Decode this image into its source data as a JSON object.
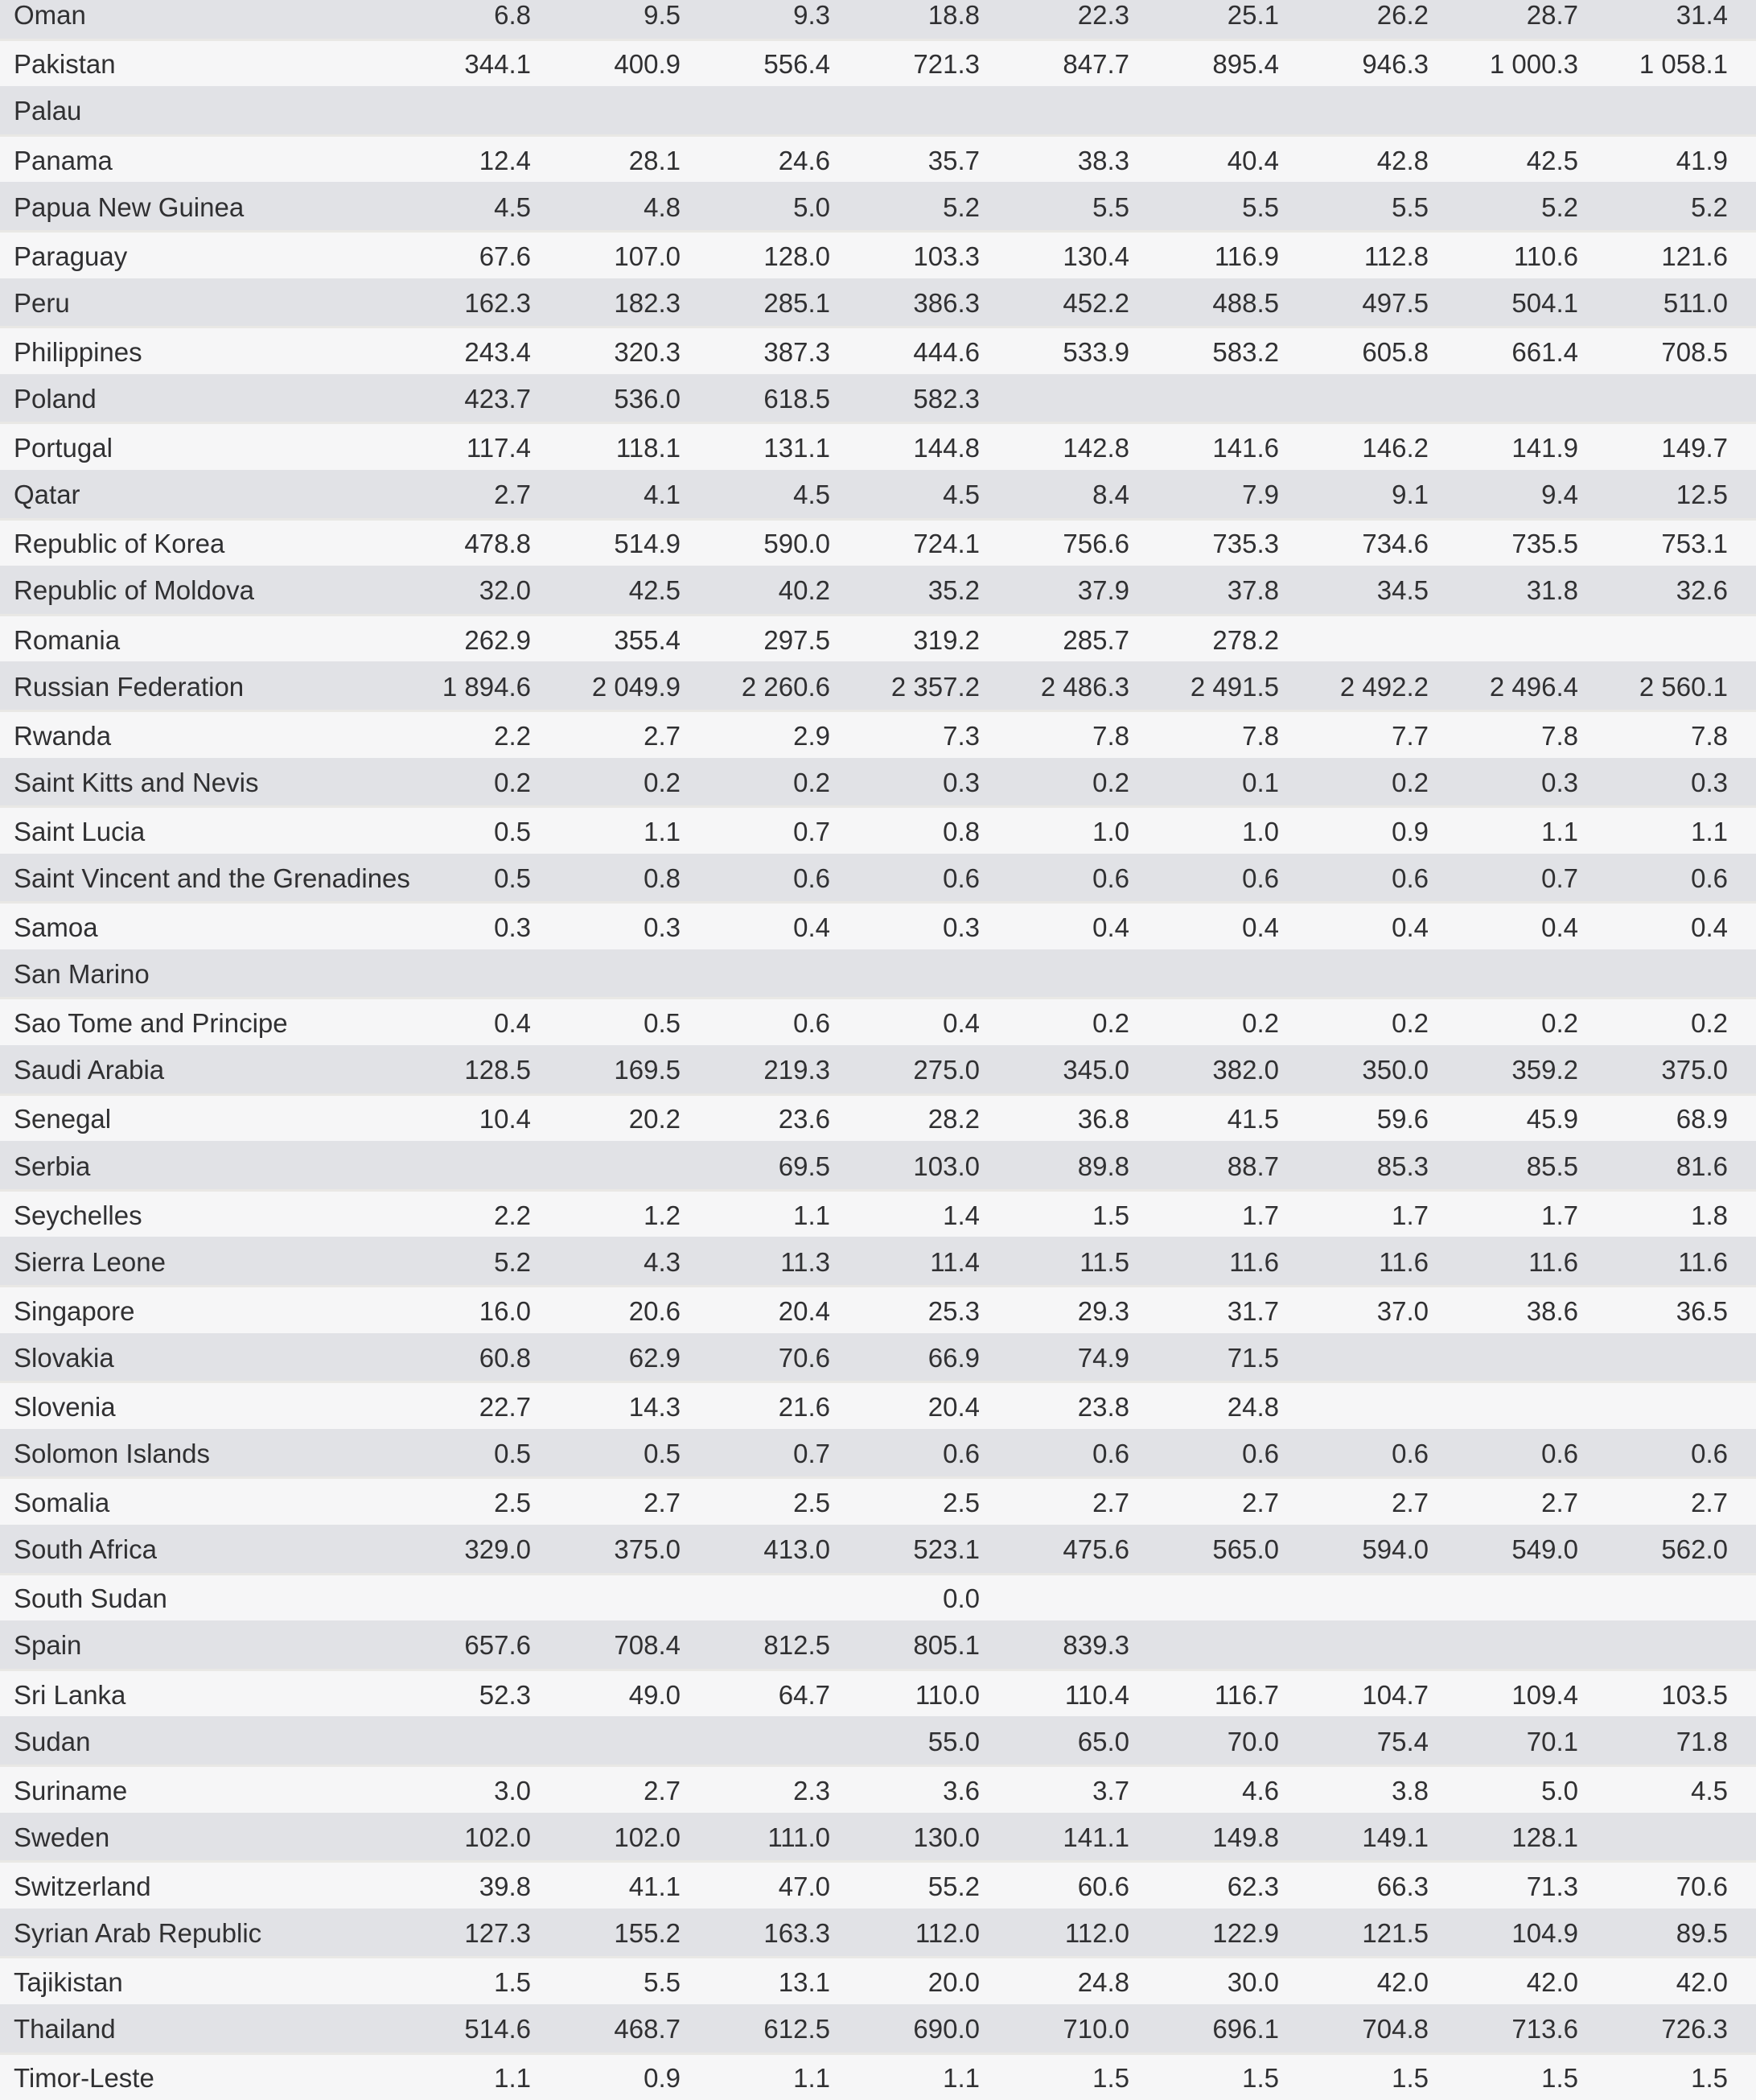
{
  "style": {
    "row_dark_bg": "#e1e2e6",
    "row_light_bg": "#f6f6f7",
    "separator": "#e9e8e5",
    "text_color": "#303032"
  },
  "table": {
    "columns_count": 9,
    "rows": [
      {
        "country": "Oman",
        "values": [
          "6.8",
          "9.5",
          "9.3",
          "18.8",
          "22.3",
          "25.1",
          "26.2",
          "28.7",
          "31.4"
        ]
      },
      {
        "country": "Pakistan",
        "values": [
          "344.1",
          "400.9",
          "556.4",
          "721.3",
          "847.7",
          "895.4",
          "946.3",
          "1 000.3",
          "1 058.1"
        ]
      },
      {
        "country": "Palau",
        "values": [
          "",
          "",
          "",
          "",
          "",
          "",
          "",
          "",
          ""
        ]
      },
      {
        "country": "Panama",
        "values": [
          "12.4",
          "28.1",
          "24.6",
          "35.7",
          "38.3",
          "40.4",
          "42.8",
          "42.5",
          "41.9"
        ]
      },
      {
        "country": "Papua New Guinea",
        "values": [
          "4.5",
          "4.8",
          "5.0",
          "5.2",
          "5.5",
          "5.5",
          "5.5",
          "5.2",
          "5.2"
        ]
      },
      {
        "country": "Paraguay",
        "values": [
          "67.6",
          "107.0",
          "128.0",
          "103.3",
          "130.4",
          "116.9",
          "112.8",
          "110.6",
          "121.6"
        ]
      },
      {
        "country": "Peru",
        "values": [
          "162.3",
          "182.3",
          "285.1",
          "386.3",
          "452.2",
          "488.5",
          "497.5",
          "504.1",
          "511.0"
        ]
      },
      {
        "country": "Philippines",
        "values": [
          "243.4",
          "320.3",
          "387.3",
          "444.6",
          "533.9",
          "583.2",
          "605.8",
          "661.4",
          "708.5"
        ]
      },
      {
        "country": "Poland",
        "values": [
          "423.7",
          "536.0",
          "618.5",
          "582.3",
          "",
          "",
          "",
          "",
          ""
        ]
      },
      {
        "country": "Portugal",
        "values": [
          "117.4",
          "118.1",
          "131.1",
          "144.8",
          "142.8",
          "141.6",
          "146.2",
          "141.9",
          "149.7"
        ]
      },
      {
        "country": "Qatar",
        "values": [
          "2.7",
          "4.1",
          "4.5",
          "4.5",
          "8.4",
          "7.9",
          "9.1",
          "9.4",
          "12.5"
        ]
      },
      {
        "country": "Republic of Korea",
        "values": [
          "478.8",
          "514.9",
          "590.0",
          "724.1",
          "756.6",
          "735.3",
          "734.6",
          "735.5",
          "753.1"
        ]
      },
      {
        "country": "Republic of Moldova",
        "values": [
          "32.0",
          "42.5",
          "40.2",
          "35.2",
          "37.9",
          "37.8",
          "34.5",
          "31.8",
          "32.6"
        ]
      },
      {
        "country": "Romania",
        "values": [
          "262.9",
          "355.4",
          "297.5",
          "319.2",
          "285.7",
          "278.2",
          "",
          "",
          ""
        ]
      },
      {
        "country": "Russian Federation",
        "values": [
          "1 894.6",
          "2 049.9",
          "2 260.6",
          "2 357.2",
          "2 486.3",
          "2 491.5",
          "2 492.2",
          "2 496.4",
          "2 560.1"
        ]
      },
      {
        "country": "Rwanda",
        "values": [
          "2.2",
          "2.7",
          "2.9",
          "7.3",
          "7.8",
          "7.8",
          "7.7",
          "7.8",
          "7.8"
        ]
      },
      {
        "country": "Saint Kitts and Nevis",
        "values": [
          "0.2",
          "0.2",
          "0.2",
          "0.3",
          "0.2",
          "0.1",
          "0.2",
          "0.3",
          "0.3"
        ]
      },
      {
        "country": "Saint Lucia",
        "values": [
          "0.5",
          "1.1",
          "0.7",
          "0.8",
          "1.0",
          "1.0",
          "0.9",
          "1.1",
          "1.1"
        ]
      },
      {
        "country": "Saint Vincent and the Grenadines",
        "values": [
          "0.5",
          "0.8",
          "0.6",
          "0.6",
          "0.6",
          "0.6",
          "0.6",
          "0.7",
          "0.6"
        ]
      },
      {
        "country": "Samoa",
        "values": [
          "0.3",
          "0.3",
          "0.4",
          "0.3",
          "0.4",
          "0.4",
          "0.4",
          "0.4",
          "0.4"
        ]
      },
      {
        "country": "San Marino",
        "values": [
          "",
          "",
          "",
          "",
          "",
          "",
          "",
          "",
          ""
        ]
      },
      {
        "country": "Sao Tome and Principe",
        "values": [
          "0.4",
          "0.5",
          "0.6",
          "0.4",
          "0.2",
          "0.2",
          "0.2",
          "0.2",
          "0.2"
        ]
      },
      {
        "country": "Saudi Arabia",
        "values": [
          "128.5",
          "169.5",
          "219.3",
          "275.0",
          "345.0",
          "382.0",
          "350.0",
          "359.2",
          "375.0"
        ]
      },
      {
        "country": "Senegal",
        "values": [
          "10.4",
          "20.2",
          "23.6",
          "28.2",
          "36.8",
          "41.5",
          "59.6",
          "45.9",
          "68.9"
        ]
      },
      {
        "country": "Serbia",
        "values": [
          "",
          "",
          "69.5",
          "103.0",
          "89.8",
          "88.7",
          "85.3",
          "85.5",
          "81.6"
        ]
      },
      {
        "country": "Seychelles",
        "values": [
          "2.2",
          "1.2",
          "1.1",
          "1.4",
          "1.5",
          "1.7",
          "1.7",
          "1.7",
          "1.8"
        ]
      },
      {
        "country": "Sierra Leone",
        "values": [
          "5.2",
          "4.3",
          "11.3",
          "11.4",
          "11.5",
          "11.6",
          "11.6",
          "11.6",
          "11.6"
        ]
      },
      {
        "country": "Singapore",
        "values": [
          "16.0",
          "20.6",
          "20.4",
          "25.3",
          "29.3",
          "31.7",
          "37.0",
          "38.6",
          "36.5"
        ]
      },
      {
        "country": "Slovakia",
        "values": [
          "60.8",
          "62.9",
          "70.6",
          "66.9",
          "74.9",
          "71.5",
          "",
          "",
          ""
        ]
      },
      {
        "country": "Slovenia",
        "values": [
          "22.7",
          "14.3",
          "21.6",
          "20.4",
          "23.8",
          "24.8",
          "",
          "",
          ""
        ]
      },
      {
        "country": "Solomon Islands",
        "values": [
          "0.5",
          "0.5",
          "0.7",
          "0.6",
          "0.6",
          "0.6",
          "0.6",
          "0.6",
          "0.6"
        ]
      },
      {
        "country": "Somalia",
        "values": [
          "2.5",
          "2.7",
          "2.5",
          "2.5",
          "2.7",
          "2.7",
          "2.7",
          "2.7",
          "2.7"
        ]
      },
      {
        "country": "South Africa",
        "values": [
          "329.0",
          "375.0",
          "413.0",
          "523.1",
          "475.6",
          "565.0",
          "594.0",
          "549.0",
          "562.0"
        ]
      },
      {
        "country": "South Sudan",
        "values": [
          "",
          "",
          "",
          "0.0",
          "",
          "",
          "",
          "",
          ""
        ]
      },
      {
        "country": "Spain",
        "values": [
          "657.6",
          "708.4",
          "812.5",
          "805.1",
          "839.3",
          "",
          "",
          "",
          ""
        ]
      },
      {
        "country": "Sri Lanka",
        "values": [
          "52.3",
          "49.0",
          "64.7",
          "110.0",
          "110.4",
          "116.7",
          "104.7",
          "109.4",
          "103.5"
        ]
      },
      {
        "country": "Sudan",
        "values": [
          "",
          "",
          "",
          "55.0",
          "65.0",
          "70.0",
          "75.4",
          "70.1",
          "71.8"
        ]
      },
      {
        "country": "Suriname",
        "values": [
          "3.0",
          "2.7",
          "2.3",
          "3.6",
          "3.7",
          "4.6",
          "3.8",
          "5.0",
          "4.5"
        ]
      },
      {
        "country": "Sweden",
        "values": [
          "102.0",
          "102.0",
          "111.0",
          "130.0",
          "141.1",
          "149.8",
          "149.1",
          "128.1",
          ""
        ]
      },
      {
        "country": "Switzerland",
        "values": [
          "39.8",
          "41.1",
          "47.0",
          "55.2",
          "60.6",
          "62.3",
          "66.3",
          "71.3",
          "70.6"
        ]
      },
      {
        "country": "Syrian Arab Republic",
        "values": [
          "127.3",
          "155.2",
          "163.3",
          "112.0",
          "112.0",
          "122.9",
          "121.5",
          "104.9",
          "89.5"
        ]
      },
      {
        "country": "Tajikistan",
        "values": [
          "1.5",
          "5.5",
          "13.1",
          "20.0",
          "24.8",
          "30.0",
          "42.0",
          "42.0",
          "42.0"
        ]
      },
      {
        "country": "Thailand",
        "values": [
          "514.6",
          "468.7",
          "612.5",
          "690.0",
          "710.0",
          "696.1",
          "704.8",
          "713.6",
          "726.3"
        ]
      },
      {
        "country": "Timor-Leste",
        "values": [
          "1.1",
          "0.9",
          "1.1",
          "1.1",
          "1.5",
          "1.5",
          "1.5",
          "1.5",
          "1.5"
        ]
      }
    ]
  }
}
